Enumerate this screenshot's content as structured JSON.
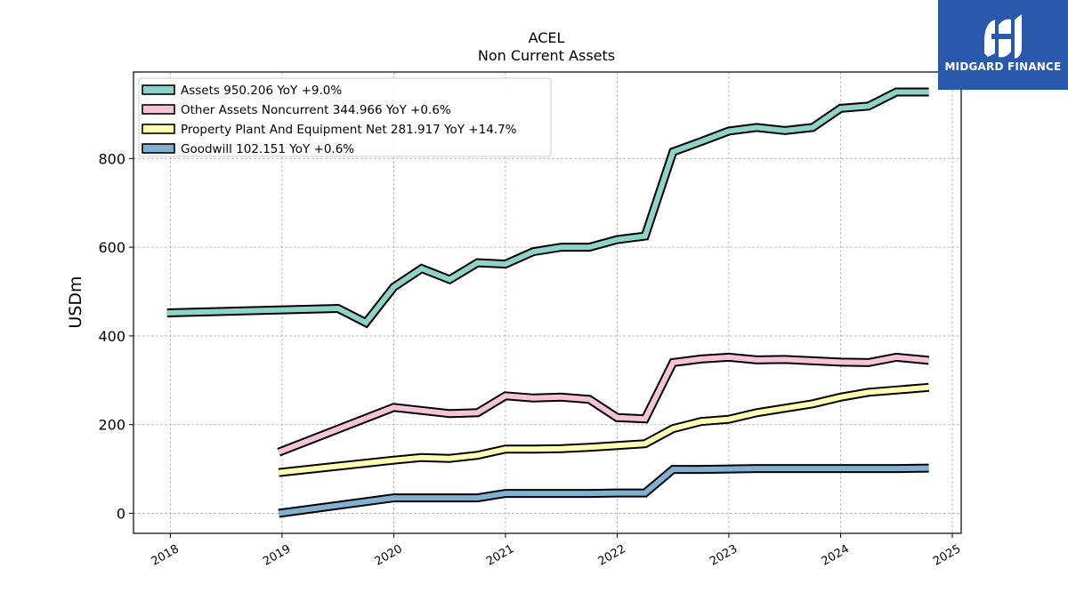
{
  "chart_data": {
    "type": "line",
    "title": "ACEL",
    "subtitle": "Non Current  Assets",
    "ylabel": "USDm",
    "xlabel": "",
    "xlim": [
      2017.67,
      2025.08
    ],
    "ylim": [
      -45,
      995
    ],
    "x_ticks": [
      2018,
      2019,
      2020,
      2021,
      2022,
      2023,
      2024,
      2025
    ],
    "y_ticks": [
      0,
      200,
      400,
      600,
      800
    ],
    "grid": true,
    "legend_position": "top-left",
    "series": [
      {
        "name": "Assets",
        "legend_label": "Assets  950.206 YoY +9.0%",
        "color": "#8dd3c7",
        "x": [
          2017.97,
          2019.5,
          2019.75,
          2020.0,
          2020.25,
          2020.5,
          2020.75,
          2021.0,
          2021.25,
          2021.5,
          2021.75,
          2022.0,
          2022.25,
          2022.5,
          2022.75,
          2023.0,
          2023.25,
          2023.5,
          2023.75,
          2024.0,
          2024.25,
          2024.5,
          2024.79
        ],
        "y": [
          452,
          462,
          430,
          510,
          552,
          527,
          565,
          562,
          590,
          600,
          600,
          617,
          625,
          815,
          838,
          862,
          870,
          863,
          870,
          913,
          918,
          950,
          950
        ]
      },
      {
        "name": "Other Assets Noncurrent",
        "legend_label": "Other Assets Noncurrent  344.966 YoY +0.6%",
        "color": "#f8c3d8",
        "x": [
          2018.97,
          2020.0,
          2020.5,
          2020.75,
          2021.0,
          2021.25,
          2021.5,
          2021.75,
          2022.0,
          2022.25,
          2022.5,
          2022.75,
          2023.0,
          2023.25,
          2023.5,
          2023.75,
          2024.0,
          2024.25,
          2024.5,
          2024.79
        ],
        "y": [
          138,
          239,
          225,
          227,
          265,
          260,
          262,
          257,
          216,
          213,
          340,
          348,
          352,
          346,
          347,
          344,
          341,
          340,
          352,
          345
        ]
      },
      {
        "name": "Property Plant And Equipment Net",
        "legend_label": "Property Plant And Equipment Net  281.917 YoY +14.7%",
        "color": "#ffffb3",
        "x": [
          2018.97,
          2020.0,
          2020.25,
          2020.5,
          2020.75,
          2021.0,
          2021.25,
          2021.5,
          2021.75,
          2022.0,
          2022.25,
          2022.5,
          2022.75,
          2023.0,
          2023.25,
          2023.5,
          2023.75,
          2024.0,
          2024.25,
          2024.5,
          2024.79
        ],
        "y": [
          92,
          120,
          126,
          124,
          131,
          145,
          145,
          146,
          149,
          153,
          157,
          191,
          207,
          212,
          227,
          237,
          247,
          262,
          273,
          278,
          284
        ]
      },
      {
        "name": "Goodwill",
        "legend_label": "Goodwill  102.151 YoY +0.6%",
        "color": "#80b1d3",
        "x": [
          2018.97,
          2020.0,
          2020.25,
          2020.5,
          2020.75,
          2021.0,
          2021.25,
          2021.5,
          2021.75,
          2022.0,
          2022.25,
          2022.5,
          2022.75,
          2023.0,
          2023.25,
          2023.5,
          2023.75,
          2024.0,
          2024.25,
          2024.5,
          2024.79
        ],
        "y": [
          0,
          35,
          35,
          35,
          35,
          45,
          45,
          45,
          45,
          46,
          46,
          99,
          99,
          100,
          101,
          101,
          101,
          101,
          101,
          101,
          102
        ]
      }
    ]
  },
  "logo": {
    "text": "MIDGARD FINANCE",
    "background": "#2a58ad"
  }
}
